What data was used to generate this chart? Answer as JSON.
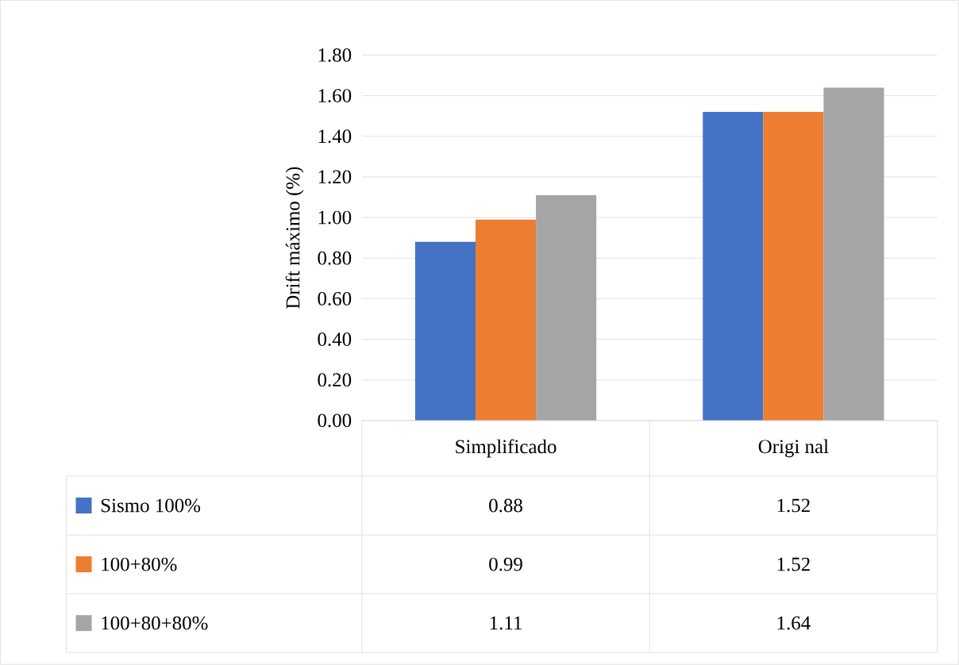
{
  "chart_data": {
    "type": "bar",
    "ylabel": "Drift máximo (%)",
    "categories": [
      "Simplificado",
      "Origi nal"
    ],
    "series": [
      {
        "name": "Sismo 100%",
        "color": "#4472c4",
        "values": [
          0.88,
          1.52
        ]
      },
      {
        "name": "100+80%",
        "color": "#ed7d31",
        "values": [
          0.99,
          1.52
        ]
      },
      {
        "name": "100+80+80%",
        "color": "#a5a5a5",
        "values": [
          1.11,
          1.64
        ]
      }
    ],
    "ylim": [
      0,
      1.8
    ],
    "yticks": [
      {
        "value": 0,
        "label": "0.00"
      },
      {
        "value": 0.2,
        "label": "0.20"
      },
      {
        "value": 0.4,
        "label": "0.40"
      },
      {
        "value": 0.6,
        "label": "0.60"
      },
      {
        "value": 0.8,
        "label": "0.80"
      },
      {
        "value": 1.0,
        "label": "1.00"
      },
      {
        "value": 1.2,
        "label": "1.20"
      },
      {
        "value": 1.4,
        "label": "1.40"
      },
      {
        "value": 1.6,
        "label": "1.60"
      },
      {
        "value": 1.8,
        "label": "1.80"
      }
    ],
    "grid": "y",
    "legend": "bottom",
    "data_labels": true
  }
}
